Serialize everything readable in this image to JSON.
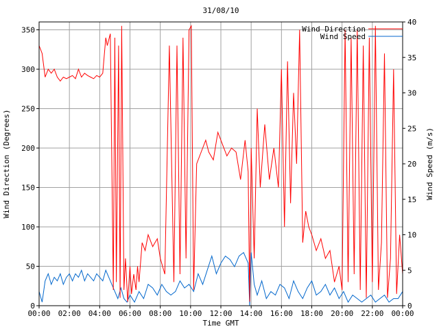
{
  "chart_data": {
    "type": "line",
    "title": "31/08/10",
    "xlabel": "Time GMT",
    "ylabel_left": "Wind Direction (Degrees)",
    "ylabel_right": "Wind Speed (m/s)",
    "x_unit": "hour",
    "xlim": [
      0,
      24
    ],
    "x_ticks": [
      0,
      2,
      4,
      6,
      8,
      10,
      12,
      14,
      16,
      18,
      20,
      22,
      24
    ],
    "x_tick_labels": [
      "00:00",
      "02:00",
      "04:00",
      "06:00",
      "08:00",
      "10:00",
      "12:00",
      "14:00",
      "16:00",
      "18:00",
      "20:00",
      "22:00",
      "00:00"
    ],
    "ylim_left": [
      0,
      360
    ],
    "y_ticks_left": [
      0,
      50,
      100,
      150,
      200,
      250,
      300,
      350
    ],
    "ylim_right": [
      0,
      40
    ],
    "y_ticks_right": [
      0,
      5,
      10,
      15,
      20,
      25,
      30,
      35,
      40
    ],
    "grid": true,
    "legend_position": "top-right",
    "series": [
      {
        "name": "Wind Direction",
        "axis": "left",
        "color": "#ff0000",
        "x": [
          0,
          0.2,
          0.4,
          0.6,
          0.8,
          1.0,
          1.2,
          1.4,
          1.6,
          1.8,
          2.0,
          2.2,
          2.4,
          2.6,
          2.8,
          3.0,
          3.2,
          3.4,
          3.6,
          3.8,
          4.0,
          4.2,
          4.4,
          4.5,
          4.7,
          4.9,
          5.0,
          5.1,
          5.25,
          5.35,
          5.45,
          5.6,
          5.7,
          5.85,
          6.0,
          6.1,
          6.25,
          6.4,
          6.5,
          6.6,
          6.8,
          7.0,
          7.2,
          7.5,
          7.8,
          8.0,
          8.3,
          8.6,
          8.9,
          9.1,
          9.3,
          9.5,
          9.7,
          9.9,
          10.05,
          10.2,
          10.4,
          10.6,
          10.8,
          11.0,
          11.2,
          11.5,
          11.8,
          12.1,
          12.4,
          12.7,
          13.0,
          13.3,
          13.6,
          13.8,
          13.9,
          14.0,
          14.2,
          14.4,
          14.6,
          14.9,
          15.2,
          15.5,
          15.8,
          16.0,
          16.2,
          16.4,
          16.6,
          16.8,
          17.0,
          17.2,
          17.4,
          17.6,
          17.8,
          18.0,
          18.3,
          18.6,
          18.9,
          19.2,
          19.5,
          19.8,
          20.0,
          20.2,
          20.4,
          20.6,
          20.8,
          21.0,
          21.2,
          21.4,
          21.6,
          21.8,
          22.0,
          22.2,
          22.4,
          22.6,
          22.8,
          23.0,
          23.2,
          23.4,
          23.6,
          23.8,
          24.0
        ],
        "values": [
          330,
          320,
          290,
          300,
          295,
          300,
          290,
          285,
          290,
          288,
          290,
          292,
          288,
          300,
          290,
          295,
          292,
          290,
          288,
          292,
          290,
          295,
          340,
          330,
          345,
          20,
          340,
          30,
          330,
          10,
          355,
          20,
          60,
          5,
          50,
          15,
          40,
          20,
          50,
          30,
          80,
          70,
          90,
          75,
          85,
          60,
          40,
          330,
          30,
          330,
          40,
          340,
          60,
          350,
          355,
          20,
          180,
          190,
          200,
          210,
          195,
          185,
          220,
          205,
          190,
          200,
          195,
          160,
          210,
          170,
          5,
          200,
          60,
          250,
          150,
          230,
          160,
          200,
          150,
          300,
          100,
          310,
          130,
          270,
          180,
          350,
          80,
          120,
          100,
          90,
          70,
          85,
          60,
          70,
          30,
          50,
          20,
          350,
          30,
          340,
          40,
          350,
          20,
          330,
          10,
          340,
          30,
          355,
          20,
          80,
          320,
          10,
          60,
          300,
          15,
          90,
          40
        ]
      },
      {
        "name": "Wind Speed",
        "axis": "right",
        "color": "#0066cc",
        "x": [
          0,
          0.2,
          0.4,
          0.6,
          0.8,
          1.0,
          1.2,
          1.4,
          1.6,
          1.8,
          2.0,
          2.2,
          2.4,
          2.6,
          2.8,
          3.0,
          3.2,
          3.4,
          3.6,
          3.8,
          4.0,
          4.2,
          4.4,
          4.6,
          4.8,
          5.0,
          5.2,
          5.4,
          5.6,
          5.8,
          6.0,
          6.3,
          6.6,
          6.9,
          7.2,
          7.5,
          7.8,
          8.1,
          8.4,
          8.7,
          9.0,
          9.3,
          9.6,
          9.9,
          10.2,
          10.5,
          10.8,
          11.1,
          11.4,
          11.7,
          12.0,
          12.3,
          12.6,
          12.9,
          13.2,
          13.5,
          13.8,
          13.9,
          14.0,
          14.2,
          14.4,
          14.7,
          15.0,
          15.3,
          15.6,
          15.9,
          16.2,
          16.5,
          16.8,
          17.1,
          17.4,
          17.7,
          18.0,
          18.3,
          18.6,
          18.9,
          19.2,
          19.5,
          19.8,
          20.1,
          20.4,
          20.7,
          21.0,
          21.3,
          21.6,
          21.9,
          22.2,
          22.5,
          22.8,
          23.1,
          23.4,
          23.7,
          24.0
        ],
        "values": [
          2.0,
          0.5,
          3.5,
          4.5,
          3.0,
          4.0,
          3.5,
          4.5,
          3.0,
          4.0,
          4.5,
          3.5,
          4.5,
          4.0,
          5.0,
          3.5,
          4.5,
          4.0,
          3.5,
          4.5,
          4.0,
          3.5,
          5.0,
          4.0,
          3.0,
          2.0,
          1.0,
          2.5,
          1.0,
          0.5,
          1.5,
          0.5,
          2.0,
          1.0,
          3.0,
          2.5,
          1.5,
          3.0,
          2.0,
          1.5,
          2.0,
          3.5,
          2.5,
          3.0,
          2.0,
          4.5,
          3.0,
          5.0,
          7.0,
          4.5,
          6.0,
          7.0,
          6.5,
          5.5,
          7.0,
          7.5,
          6.0,
          0.0,
          7.5,
          3.0,
          1.5,
          3.5,
          1.0,
          2.0,
          1.5,
          3.0,
          2.5,
          1.0,
          3.5,
          2.0,
          1.0,
          2.5,
          3.5,
          1.5,
          2.0,
          3.0,
          1.5,
          2.5,
          1.0,
          2.0,
          0.5,
          1.5,
          1.0,
          0.5,
          1.0,
          1.5,
          0.5,
          1.0,
          1.5,
          0.5,
          1.0,
          1.0,
          2.0
        ]
      }
    ]
  }
}
